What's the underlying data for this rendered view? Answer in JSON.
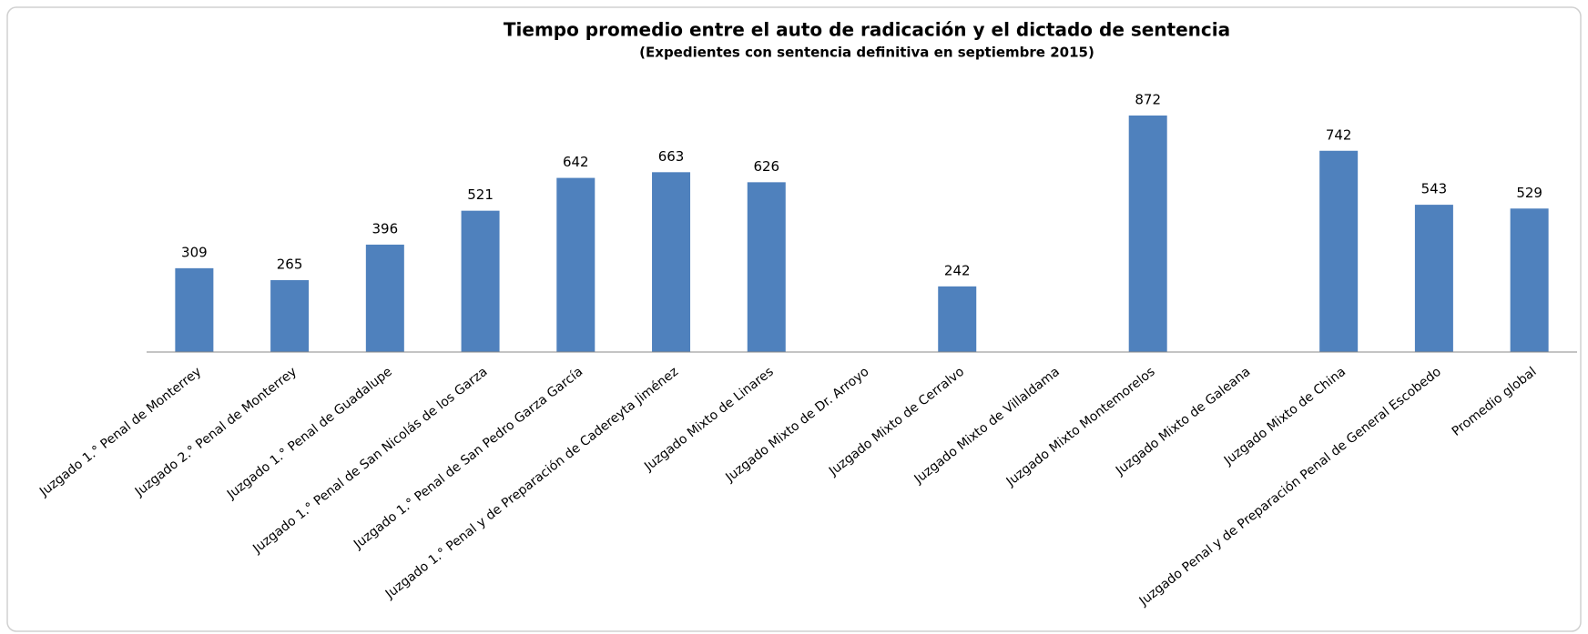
{
  "chart_data": {
    "type": "bar",
    "title": "Tiempo promedio entre el auto de radicación y el dictado de sentencia",
    "subtitle": "(Expedientes con sentencia definitiva en septiembre 2015)",
    "categories": [
      "Juzgado 1.° Penal de Monterrey",
      "Juzgado 2.° Penal de Monterrey",
      "Juzgado 1.° Penal de Guadalupe",
      "Juzgado 1.° Penal de San Nicolás de los Garza",
      "Juzgado 1.° Penal de San Pedro Garza García",
      "Juzgado 1.° Penal y de Preparación de Cadereyta Jiménez",
      "Juzgado Mixto de  Linares",
      "Juzgado Mixto de Dr. Arroyo",
      "Juzgado Mixto de Cerralvo",
      "Juzgado Mixto de Villaldama",
      "Juzgado Mixto Montemorelos",
      "Juzgado Mixto de Galeana",
      "Juzgado Mixto de China",
      "Juzgado Penal y de Preparación Penal de General Escobedo",
      "Promedio global"
    ],
    "values": [
      309,
      265,
      396,
      521,
      642,
      663,
      626,
      null,
      242,
      null,
      872,
      null,
      742,
      543,
      529
    ],
    "color": "#4f81bd"
  }
}
